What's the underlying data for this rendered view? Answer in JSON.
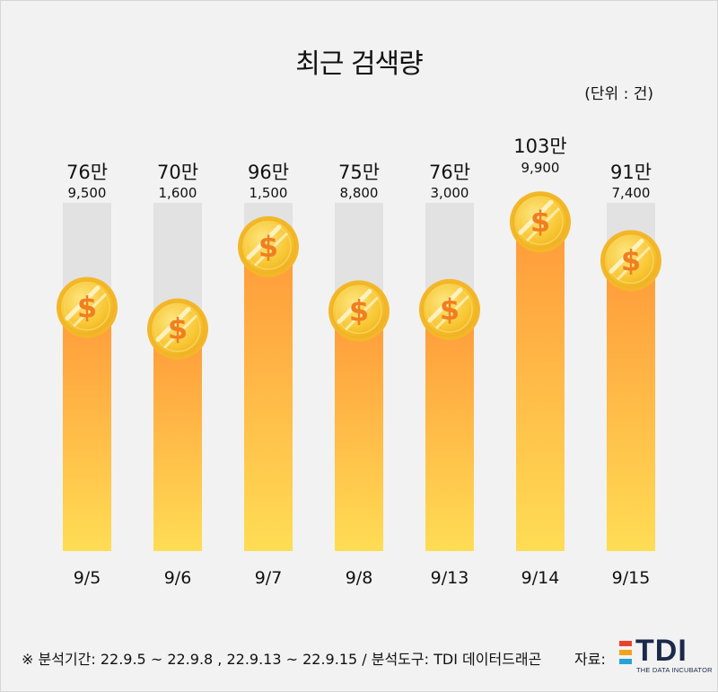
{
  "chart_data": {
    "type": "bar",
    "title": "최근 검색량",
    "unit_note": "(단위 : 건)",
    "categories": [
      "9/5",
      "9/6",
      "9/7",
      "9/8",
      "9/13",
      "9/14",
      "9/15"
    ],
    "values": [
      769500,
      701600,
      961500,
      758800,
      763000,
      1039900,
      917400
    ],
    "label_main": [
      "76만",
      "70만",
      "96만",
      "75만",
      "76만",
      "103만",
      "91만"
    ],
    "label_sub": [
      "9,500",
      "1,600",
      "1,500",
      "8,800",
      "3,000",
      "9,900",
      "7,400"
    ],
    "ylim": [
      0,
      1100000
    ],
    "grid": false,
    "colors": {
      "track": "#e2e2e2",
      "bar_top": "#ff9a3a",
      "bar_bottom": "#ffdd55",
      "coin": "#f7c530",
      "coin_symbol": "#f07f1e"
    }
  },
  "footnote": "※ 분석기간: 22.9.5 ~ 22.9.8 , 22.9.13 ~ 22.9.15 / 분석도구: TDI 데이터드래곤",
  "source": {
    "label": "자료:",
    "logo_text": "TDI",
    "logo_sub": "THE DATA INCUBATOR"
  }
}
